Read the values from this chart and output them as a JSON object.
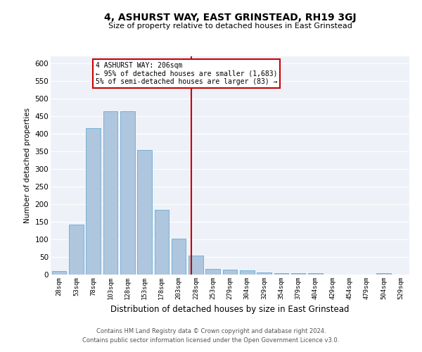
{
  "title": "4, ASHURST WAY, EAST GRINSTEAD, RH19 3GJ",
  "subtitle": "Size of property relative to detached houses in East Grinstead",
  "xlabel": "Distribution of detached houses by size in East Grinstead",
  "ylabel": "Number of detached properties",
  "footer_line1": "Contains HM Land Registry data © Crown copyright and database right 2024.",
  "footer_line2": "Contains public sector information licensed under the Open Government Licence v3.0.",
  "bar_color": "#aec6de",
  "bar_edge_color": "#6aaad4",
  "background_color": "#eef2f8",
  "grid_color": "#ffffff",
  "categories": [
    "28sqm",
    "53sqm",
    "78sqm",
    "103sqm",
    "128sqm",
    "153sqm",
    "178sqm",
    "203sqm",
    "228sqm",
    "253sqm",
    "279sqm",
    "304sqm",
    "329sqm",
    "354sqm",
    "379sqm",
    "404sqm",
    "429sqm",
    "454sqm",
    "479sqm",
    "504sqm",
    "529sqm"
  ],
  "values": [
    10,
    143,
    417,
    465,
    465,
    355,
    184,
    103,
    55,
    16,
    15,
    12,
    7,
    5,
    5,
    5,
    0,
    0,
    0,
    5,
    0
  ],
  "vline_x": 7.72,
  "vline_color": "#cc0000",
  "annotation_line1": "4 ASHURST WAY: 206sqm",
  "annotation_line2": "← 95% of detached houses are smaller (1,683)",
  "annotation_line3": "5% of semi-detached houses are larger (83) →",
  "annotation_box_color": "#cc0000",
  "ylim": [
    0,
    620
  ],
  "yticks": [
    0,
    50,
    100,
    150,
    200,
    250,
    300,
    350,
    400,
    450,
    500,
    550,
    600
  ]
}
